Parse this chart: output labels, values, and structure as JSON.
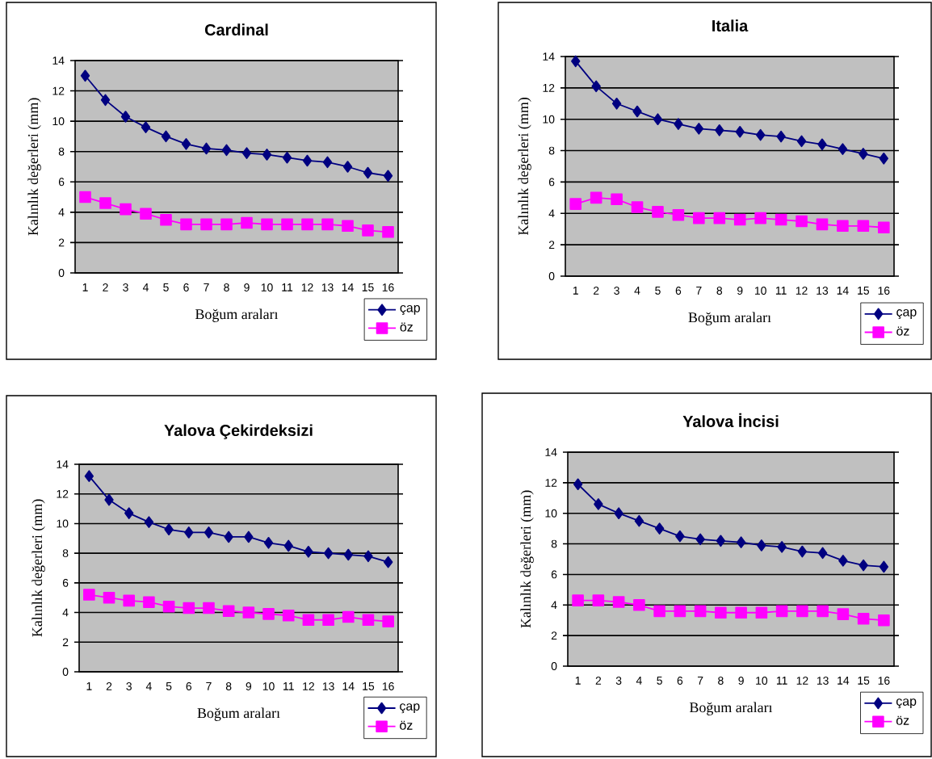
{
  "chart_data": [
    {
      "type": "line",
      "title": "Cardinal",
      "xlabel": "Boğum araları",
      "ylabel": "Kalınlık değerleri (mm)",
      "categories": [
        "1",
        "2",
        "3",
        "4",
        "5",
        "6",
        "7",
        "8",
        "9",
        "10",
        "11",
        "12",
        "13",
        "14",
        "15",
        "16"
      ],
      "ylim": [
        0,
        14
      ],
      "yticks": [
        0,
        2,
        4,
        6,
        8,
        10,
        12,
        14
      ],
      "grid": "y",
      "legend": "bottom right",
      "line_style": "solid",
      "series": [
        {
          "name": "çap",
          "color": "#000080",
          "marker": "diamond",
          "values": [
            13.0,
            11.4,
            10.3,
            9.6,
            9.0,
            8.5,
            8.2,
            8.1,
            7.9,
            7.8,
            7.6,
            7.4,
            7.3,
            7.0,
            6.6,
            6.4
          ]
        },
        {
          "name": "öz",
          "color": "#ff00ff",
          "marker": "square",
          "values": [
            5.0,
            4.6,
            4.2,
            3.9,
            3.5,
            3.2,
            3.2,
            3.2,
            3.3,
            3.2,
            3.2,
            3.2,
            3.2,
            3.1,
            2.8,
            2.7
          ]
        }
      ]
    },
    {
      "type": "line",
      "title": "Italia",
      "xlabel": "Boğum araları",
      "ylabel": "Kalınlık değerleri (mm)",
      "categories": [
        "1",
        "2",
        "3",
        "4",
        "5",
        "6",
        "7",
        "8",
        "9",
        "10",
        "11",
        "12",
        "13",
        "14",
        "15",
        "16"
      ],
      "ylim": [
        0,
        14
      ],
      "yticks": [
        0,
        2,
        4,
        6,
        8,
        10,
        12,
        14
      ],
      "grid": "y",
      "legend": "bottom right",
      "line_style": "solid",
      "series": [
        {
          "name": "çap",
          "color": "#000080",
          "marker": "diamond",
          "values": [
            13.7,
            12.1,
            11.0,
            10.5,
            10.0,
            9.7,
            9.4,
            9.3,
            9.2,
            9.0,
            8.9,
            8.6,
            8.4,
            8.1,
            7.8,
            7.5
          ]
        },
        {
          "name": "öz",
          "color": "#ff00ff",
          "marker": "square",
          "values": [
            4.6,
            5.0,
            4.9,
            4.4,
            4.1,
            3.9,
            3.7,
            3.7,
            3.6,
            3.7,
            3.6,
            3.5,
            3.3,
            3.2,
            3.2,
            3.1
          ]
        }
      ]
    },
    {
      "type": "line",
      "title": "Yalova Çekirdeksizi",
      "xlabel": "Boğum araları",
      "ylabel": "Kalınlık değerleri (mm)",
      "categories": [
        "1",
        "2",
        "3",
        "4",
        "5",
        "6",
        "7",
        "8",
        "9",
        "10",
        "11",
        "12",
        "13",
        "14",
        "15",
        "16"
      ],
      "ylim": [
        0,
        14
      ],
      "yticks": [
        0,
        2,
        4,
        6,
        8,
        10,
        12,
        14
      ],
      "grid": "y",
      "legend": "bottom right",
      "line_style": "solid",
      "series": [
        {
          "name": "çap",
          "color": "#000080",
          "marker": "diamond",
          "values": [
            13.2,
            11.6,
            10.7,
            10.1,
            9.6,
            9.4,
            9.4,
            9.1,
            9.1,
            8.7,
            8.5,
            8.1,
            8.0,
            7.9,
            7.8,
            7.4
          ]
        },
        {
          "name": "öz",
          "color": "#ff00ff",
          "marker": "square",
          "values": [
            5.2,
            5.0,
            4.8,
            4.7,
            4.4,
            4.3,
            4.3,
            4.1,
            4.0,
            3.9,
            3.8,
            3.5,
            3.5,
            3.7,
            3.5,
            3.4
          ]
        }
      ]
    },
    {
      "type": "line",
      "title": "Yalova İncisi",
      "xlabel": "Boğum araları",
      "ylabel": "Kalınlık değerleri (mm)",
      "categories": [
        "1",
        "2",
        "3",
        "4",
        "5",
        "6",
        "7",
        "8",
        "9",
        "10",
        "11",
        "12",
        "13",
        "14",
        "15",
        "16"
      ],
      "ylim": [
        0,
        14
      ],
      "yticks": [
        0,
        2,
        4,
        6,
        8,
        10,
        12,
        14
      ],
      "grid": "y",
      "legend": "bottom right",
      "line_style": "solid",
      "series": [
        {
          "name": "çap",
          "color": "#000080",
          "marker": "diamond",
          "values": [
            11.9,
            10.6,
            10.0,
            9.5,
            9.0,
            8.5,
            8.3,
            8.2,
            8.1,
            7.9,
            7.8,
            7.5,
            7.4,
            6.9,
            6.6,
            6.5
          ]
        },
        {
          "name": "öz",
          "color": "#ff00ff",
          "marker": "square",
          "values": [
            4.3,
            4.3,
            4.2,
            4.0,
            3.6,
            3.6,
            3.6,
            3.5,
            3.5,
            3.5,
            3.6,
            3.6,
            3.6,
            3.4,
            3.1,
            3.0
          ]
        }
      ]
    }
  ]
}
